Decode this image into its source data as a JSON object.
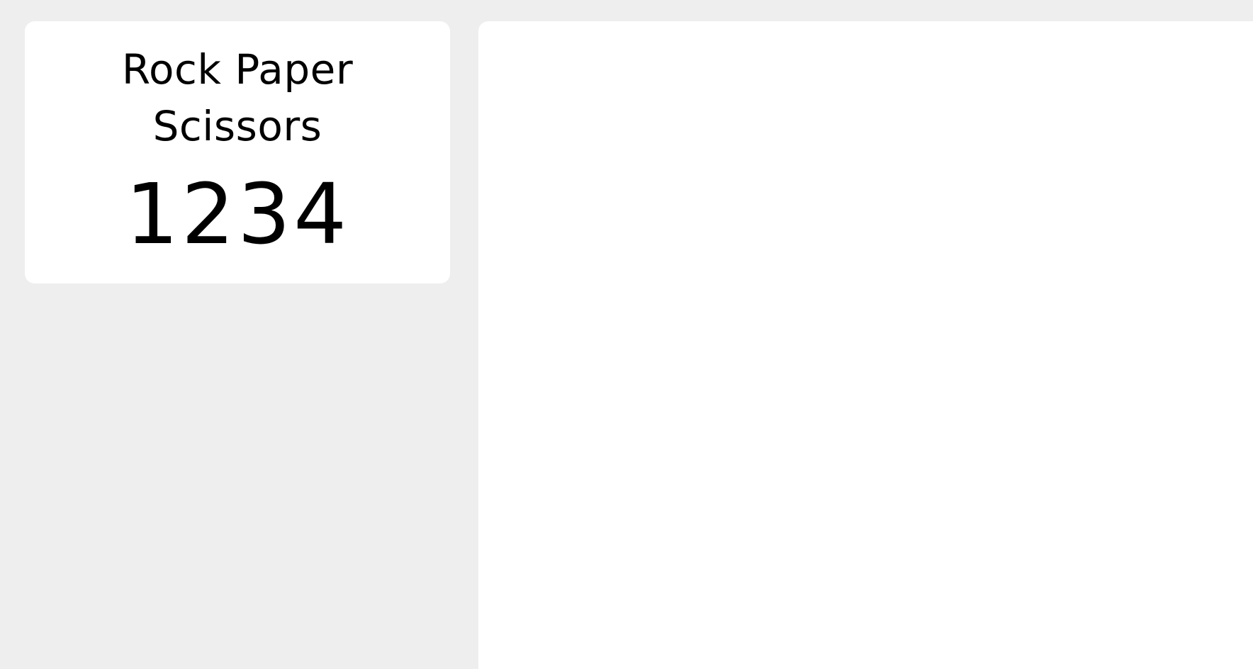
{
  "app": {
    "title_line1": "Rock Paper",
    "title_line2": "Scissors"
  },
  "score_digits": [
    "1",
    "2",
    "3",
    "4"
  ],
  "colors": {
    "background": "#eeeeee",
    "panel": "#ffffff",
    "text": "#000000"
  }
}
